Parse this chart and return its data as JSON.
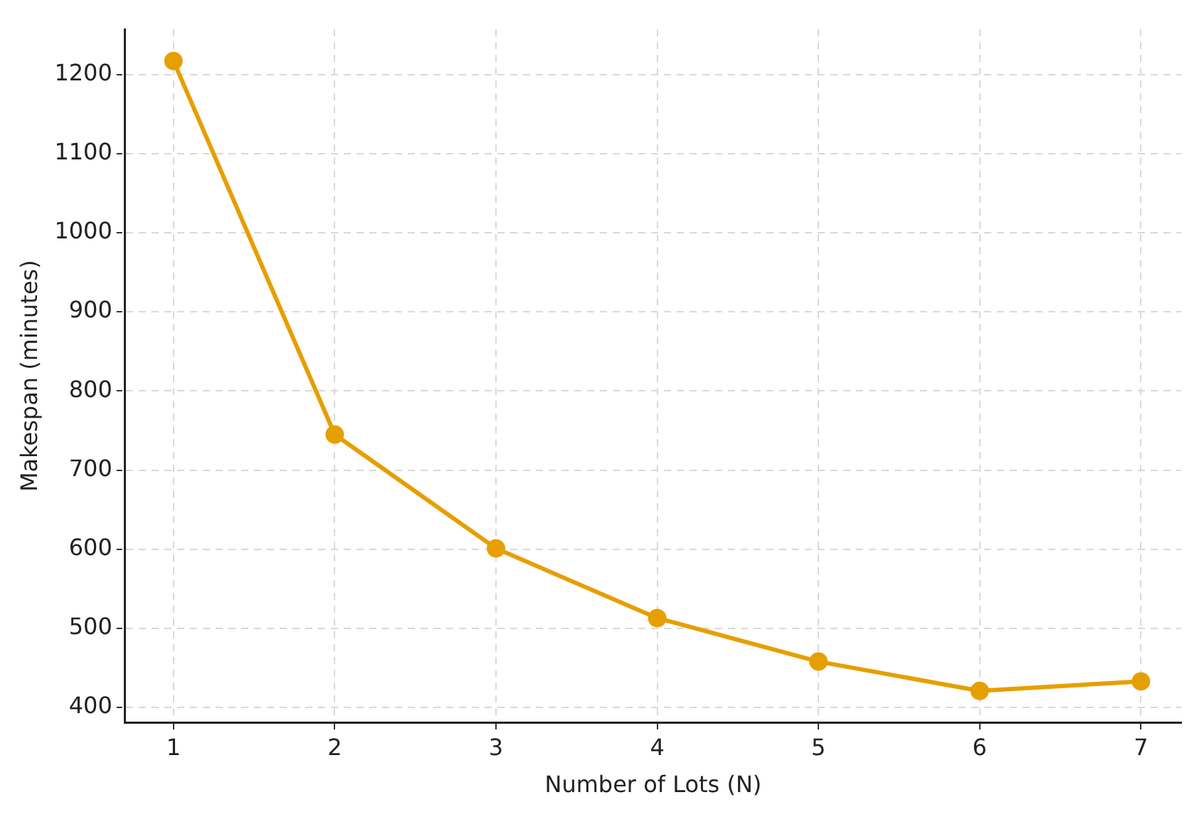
{
  "chart_data": {
    "type": "line",
    "xlabel": "Number of Lots (N)",
    "ylabel": "Makespan (minutes)",
    "x": [
      1,
      2,
      3,
      4,
      5,
      6,
      7
    ],
    "series": [
      {
        "color": "#e69f00",
        "values": [
          1217,
          745,
          601,
          513,
          458,
          421,
          433
        ]
      }
    ],
    "xlim": [
      0.7,
      7.25
    ],
    "xticks": [
      1,
      2,
      3,
      4,
      5,
      6,
      7
    ],
    "ylim": [
      381,
      1257
    ],
    "yticks": [
      400,
      500,
      600,
      700,
      800,
      900,
      1000,
      1100,
      1200
    ],
    "grid": true,
    "marker": "circle",
    "line_style": "solid",
    "legend": false
  }
}
